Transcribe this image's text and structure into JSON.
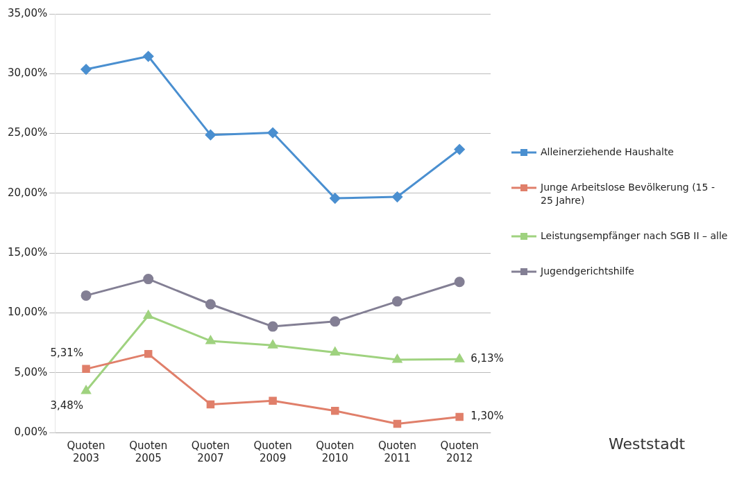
{
  "chart_data": {
    "type": "line",
    "categories": [
      "Quoten 2003",
      "Quoten 2005",
      "Quoten 2007",
      "Quoten 2009",
      "Quoten 2010",
      "Quoten 2011",
      "Quoten 2012"
    ],
    "series": [
      {
        "name": "Alleinerziehende Haushalte",
        "color": "#4a8fd0",
        "marker": "diamond",
        "values": [
          30.36,
          31.45,
          24.88,
          25.06,
          19.58,
          19.7,
          23.67
        ]
      },
      {
        "name": "Junge Arbeitslose Bevölkerung (15 - 25 Jahre)",
        "color": "#e07f6a",
        "marker": "square",
        "values": [
          5.31,
          6.57,
          2.35,
          2.65,
          1.81,
          0.72,
          1.3
        ],
        "value_labels": [
          "5,31%",
          null,
          null,
          null,
          null,
          null,
          "1,30%"
        ]
      },
      {
        "name": "Leistungsempfänger nach SGB II – alle",
        "color": "#9fd27f",
        "marker": "triangle",
        "values": [
          3.48,
          9.76,
          7.65,
          7.29,
          6.69,
          6.08,
          6.13
        ],
        "value_labels": [
          "3,48%",
          null,
          null,
          null,
          null,
          null,
          "6,13%"
        ]
      },
      {
        "name": "Jugendgerichtshilfe",
        "color": "#837f94",
        "marker": "circle",
        "values": [
          11.45,
          12.83,
          10.72,
          8.86,
          9.28,
          10.96,
          12.59
        ]
      }
    ],
    "ylim": [
      0,
      35
    ],
    "yticks": [
      {
        "value": 0,
        "label": "0,00%"
      },
      {
        "value": 5,
        "label": "5,00%"
      },
      {
        "value": 10,
        "label": "10,00%"
      },
      {
        "value": 15,
        "label": "15,00%"
      },
      {
        "value": 20,
        "label": "20,00%"
      },
      {
        "value": 25,
        "label": "25,00%"
      },
      {
        "value": 30,
        "label": "30,00%"
      },
      {
        "value": 35,
        "label": "35,00%"
      }
    ],
    "grid": "y",
    "legend": "right",
    "line_style": "solid",
    "annotations": [
      "Weststadt"
    ]
  }
}
